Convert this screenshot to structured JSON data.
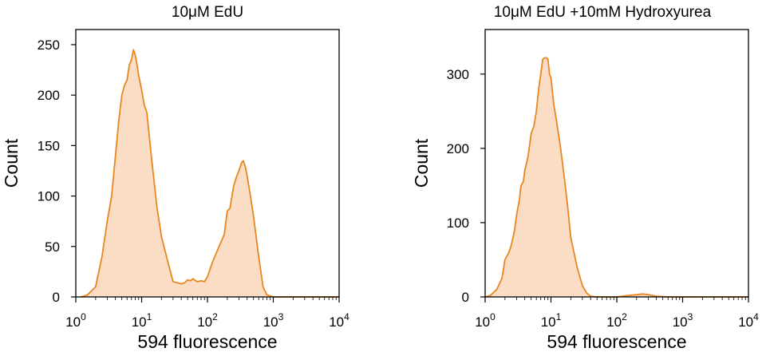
{
  "colors": {
    "line": "#E8861F",
    "fill": "#FBDDC5",
    "axis": "#000000"
  },
  "chart_data": [
    {
      "type": "area",
      "title": "10μM EdU",
      "xlabel": "594 fluorescence",
      "ylabel": "Count",
      "x_scale": "log",
      "xlim": [
        1,
        10000
      ],
      "ylim": [
        0,
        265
      ],
      "x_ticks": [
        1,
        10,
        100,
        1000,
        10000
      ],
      "x_tick_labels": [
        {
          "base": "10",
          "exp": "0"
        },
        {
          "base": "10",
          "exp": "1"
        },
        {
          "base": "10",
          "exp": "2"
        },
        {
          "base": "10",
          "exp": "3"
        },
        {
          "base": "10",
          "exp": "4"
        }
      ],
      "y_ticks": [
        0,
        50,
        100,
        150,
        200,
        250
      ],
      "y_tick_labels": [
        "0",
        "50",
        "100",
        "150",
        "200",
        "250"
      ],
      "x": [
        1.2,
        1.5,
        2,
        2.5,
        3,
        3.5,
        4,
        4.5,
        5,
        5.5,
        6,
        6.5,
        7,
        7.5,
        8,
        8.5,
        9,
        10,
        11,
        12,
        14,
        17,
        20,
        25,
        30,
        35,
        40,
        45,
        50,
        55,
        60,
        70,
        80,
        90,
        100,
        120,
        150,
        180,
        200,
        220,
        250,
        280,
        300,
        330,
        350,
        380,
        400,
        450,
        500,
        600,
        700,
        800,
        900,
        1000,
        1200,
        3000,
        10000
      ],
      "y": [
        0,
        2,
        10,
        40,
        75,
        100,
        140,
        175,
        200,
        210,
        215,
        230,
        235,
        245,
        240,
        230,
        220,
        205,
        190,
        183,
        140,
        90,
        60,
        35,
        15,
        14,
        13,
        14,
        17,
        16,
        18,
        15,
        16,
        15,
        20,
        35,
        50,
        62,
        85,
        88,
        110,
        120,
        125,
        133,
        135,
        128,
        120,
        100,
        80,
        40,
        10,
        2,
        1,
        0,
        0,
        0,
        0
      ]
    },
    {
      "type": "area",
      "title": "10μM EdU +10mM Hydroxyurea",
      "xlabel": "594 fluorescence",
      "ylabel": "Count",
      "x_scale": "log",
      "xlim": [
        1,
        10000
      ],
      "ylim": [
        0,
        360
      ],
      "x_ticks": [
        1,
        10,
        100,
        1000,
        10000
      ],
      "x_tick_labels": [
        {
          "base": "10",
          "exp": "0"
        },
        {
          "base": "10",
          "exp": "1"
        },
        {
          "base": "10",
          "exp": "2"
        },
        {
          "base": "10",
          "exp": "3"
        },
        {
          "base": "10",
          "exp": "4"
        }
      ],
      "y_ticks": [
        0,
        100,
        200,
        300
      ],
      "y_tick_labels": [
        "0",
        "100",
        "200",
        "300"
      ],
      "x": [
        1,
        1.2,
        1.5,
        1.8,
        2,
        2.3,
        2.5,
        2.8,
        3,
        3.3,
        3.5,
        3.8,
        4,
        4.5,
        5,
        5.5,
        6,
        6.5,
        7,
        7.5,
        8,
        8.5,
        9,
        9.5,
        10,
        11,
        12,
        14,
        16,
        18,
        20,
        25,
        30,
        35,
        40,
        50,
        60,
        80,
        100,
        150,
        200,
        250,
        300,
        400,
        600,
        1000,
        10000
      ],
      "y": [
        0,
        2,
        10,
        25,
        50,
        60,
        70,
        90,
        110,
        130,
        150,
        155,
        170,
        190,
        220,
        230,
        250,
        280,
        300,
        320,
        322,
        322,
        320,
        300,
        295,
        260,
        240,
        200,
        160,
        120,
        80,
        40,
        15,
        5,
        1,
        0,
        0,
        0,
        0,
        2,
        3,
        4,
        3,
        1,
        0,
        0,
        0
      ]
    }
  ]
}
